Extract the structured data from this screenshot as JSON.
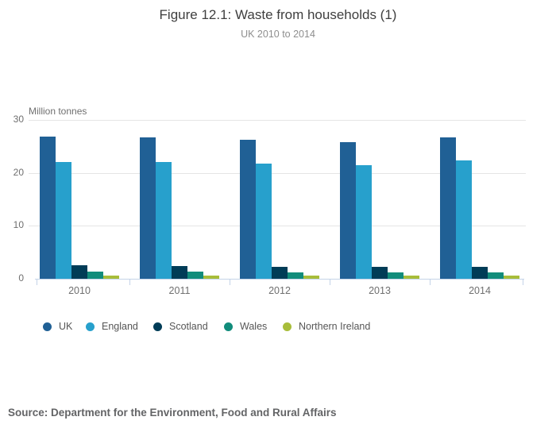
{
  "chart_data": {
    "type": "bar",
    "title": "Figure 12.1: Waste from households (1)",
    "subtitle": "UK 2010 to 2014",
    "ylabel": "Million tonnes",
    "xlabel": "",
    "ylim": [
      0,
      30
    ],
    "y_ticks": [
      0,
      10,
      20,
      30
    ],
    "grid": true,
    "legend_position": "bottom-left",
    "categories": [
      "2010",
      "2011",
      "2012",
      "2013",
      "2014"
    ],
    "series": [
      {
        "name": "UK",
        "color": "#206095",
        "values": [
          26.9,
          26.7,
          26.3,
          25.8,
          26.7
        ]
      },
      {
        "name": "England",
        "color": "#27A0CC",
        "values": [
          22.1,
          22.0,
          21.7,
          21.4,
          22.4
        ]
      },
      {
        "name": "Scotland",
        "color": "#003C57",
        "values": [
          2.5,
          2.4,
          2.3,
          2.2,
          2.2
        ]
      },
      {
        "name": "Wales",
        "color": "#118C7B",
        "values": [
          1.3,
          1.3,
          1.2,
          1.2,
          1.2
        ]
      },
      {
        "name": "Northern Ireland",
        "color": "#A8BD3A",
        "values": [
          0.6,
          0.6,
          0.6,
          0.6,
          0.6
        ]
      }
    ]
  },
  "footer": {
    "source": "Source: Department for the Environment, Food and Rural Affairs"
  }
}
